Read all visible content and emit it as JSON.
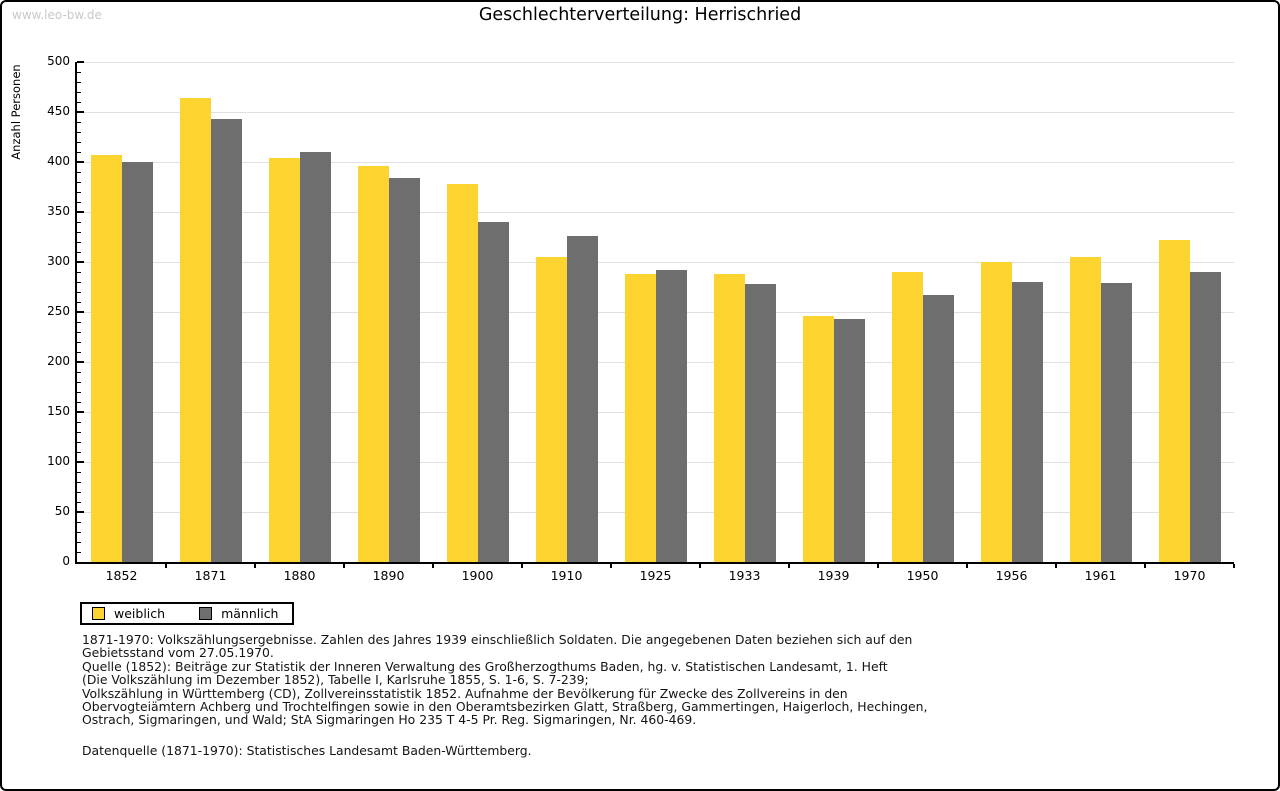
{
  "watermark": "www.leo-bw.de",
  "title": "Geschlechterverteilung: Herrischried",
  "chart_data": {
    "type": "bar",
    "title": "Geschlechterverteilung: Herrischried",
    "xlabel": "",
    "ylabel": "Anzahl Personen",
    "ylim": [
      0,
      500
    ],
    "ytick_major": 50,
    "ytick_minor": 10,
    "grid": true,
    "legend_position": "bottom-left",
    "categories": [
      "1852",
      "1871",
      "1880",
      "1890",
      "1900",
      "1910",
      "1925",
      "1933",
      "1939",
      "1950",
      "1956",
      "1961",
      "1970"
    ],
    "series": [
      {
        "name": "weiblich",
        "color": "#fcd32f",
        "values": [
          407,
          464,
          404,
          396,
          378,
          305,
          288,
          288,
          246,
          290,
          300,
          305,
          322
        ]
      },
      {
        "name": "männlich",
        "color": "#6e6e6e",
        "values": [
          400,
          443,
          410,
          384,
          340,
          326,
          292,
          278,
          243,
          267,
          280,
          279,
          290
        ]
      }
    ]
  },
  "legend": {
    "items": [
      {
        "label": "weiblich",
        "color": "#fcd32f"
      },
      {
        "label": "männlich",
        "color": "#6e6e6e"
      }
    ]
  },
  "footer": {
    "notes": [
      "1871-1970: Volkszählungsergebnisse. Zahlen des Jahres 1939 einschließlich Soldaten. Die angegebenen Daten beziehen sich auf den",
      "Gebietsstand vom 27.05.1970.",
      "Quelle (1852): Beiträge zur Statistik der Inneren Verwaltung des Großherzogthums Baden, hg. v. Statistischen Landesamt, 1. Heft",
      "(Die Volkszählung im Dezember 1852), Tabelle I, Karlsruhe 1855, S. 1-6, S. 7-239;",
      "Volkszählung in Württemberg (CD), Zollvereinsstatistik 1852. Aufnahme der Bevölkerung für Zwecke des Zollvereins in den",
      "Obervogteiämtern Achberg und Trochtelfingen sowie in den Oberamtsbezirken Glatt, Straßberg, Gammertingen, Haigerloch, Hechingen,",
      "Ostrach, Sigmaringen, und Wald; StA Sigmaringen Ho 235 T 4-5 Pr. Reg. Sigmaringen, Nr. 460-469."
    ],
    "source": "Datenquelle (1871-1970): Statistisches Landesamt Baden-Württemberg."
  },
  "colors": {
    "weiblich": "#fcd32f",
    "maennlich": "#6e6e6e",
    "gridline": "#e0e0e0",
    "axis": "#000000",
    "watermark": "#c9c9c9"
  }
}
